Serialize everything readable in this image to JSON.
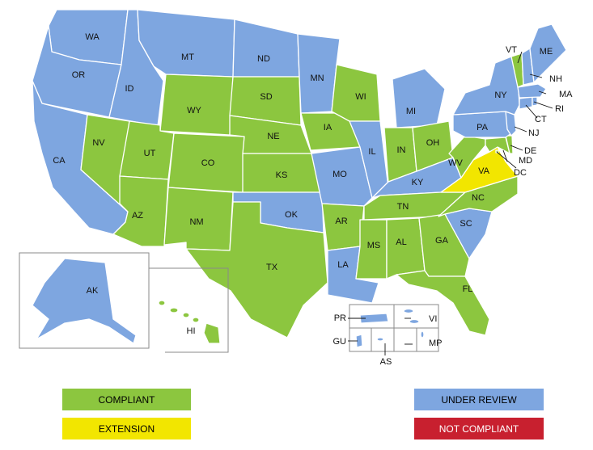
{
  "colors": {
    "compliant": "#8cc63f",
    "under_review": "#7ea6e0",
    "extension": "#f2e600",
    "not_compliant": "#c8202f"
  },
  "legend": {
    "compliant": "COMPLIANT",
    "extension": "EXTENSION",
    "under_review": "UNDER REVIEW",
    "not_compliant": "NOT COMPLIANT"
  },
  "states": [
    {
      "code": "WA",
      "status": "under_review"
    },
    {
      "code": "OR",
      "status": "under_review"
    },
    {
      "code": "CA",
      "status": "under_review"
    },
    {
      "code": "ID",
      "status": "under_review"
    },
    {
      "code": "NV",
      "status": "compliant"
    },
    {
      "code": "MT",
      "status": "under_review"
    },
    {
      "code": "WY",
      "status": "compliant"
    },
    {
      "code": "UT",
      "status": "compliant"
    },
    {
      "code": "AZ",
      "status": "compliant"
    },
    {
      "code": "CO",
      "status": "compliant"
    },
    {
      "code": "NM",
      "status": "compliant"
    },
    {
      "code": "ND",
      "status": "under_review"
    },
    {
      "code": "SD",
      "status": "compliant"
    },
    {
      "code": "NE",
      "status": "compliant"
    },
    {
      "code": "KS",
      "status": "compliant"
    },
    {
      "code": "OK",
      "status": "under_review"
    },
    {
      "code": "TX",
      "status": "compliant"
    },
    {
      "code": "MN",
      "status": "under_review"
    },
    {
      "code": "IA",
      "status": "compliant"
    },
    {
      "code": "MO",
      "status": "under_review"
    },
    {
      "code": "AR",
      "status": "compliant"
    },
    {
      "code": "LA",
      "status": "under_review"
    },
    {
      "code": "WI",
      "status": "compliant"
    },
    {
      "code": "IL",
      "status": "under_review"
    },
    {
      "code": "MI",
      "status": "under_review"
    },
    {
      "code": "IN",
      "status": "compliant"
    },
    {
      "code": "OH",
      "status": "compliant"
    },
    {
      "code": "KY",
      "status": "under_review"
    },
    {
      "code": "TN",
      "status": "compliant"
    },
    {
      "code": "MS",
      "status": "compliant"
    },
    {
      "code": "AL",
      "status": "compliant"
    },
    {
      "code": "GA",
      "status": "compliant"
    },
    {
      "code": "FL",
      "status": "compliant"
    },
    {
      "code": "SC",
      "status": "under_review"
    },
    {
      "code": "NC",
      "status": "compliant"
    },
    {
      "code": "VA",
      "status": "extension"
    },
    {
      "code": "WV",
      "status": "compliant"
    },
    {
      "code": "MD",
      "status": "compliant"
    },
    {
      "code": "DE",
      "status": "compliant"
    },
    {
      "code": "DC",
      "status": "compliant"
    },
    {
      "code": "PA",
      "status": "under_review"
    },
    {
      "code": "NJ",
      "status": "under_review"
    },
    {
      "code": "NY",
      "status": "under_review"
    },
    {
      "code": "CT",
      "status": "under_review"
    },
    {
      "code": "RI",
      "status": "under_review"
    },
    {
      "code": "MA",
      "status": "under_review"
    },
    {
      "code": "VT",
      "status": "compliant"
    },
    {
      "code": "NH",
      "status": "under_review"
    },
    {
      "code": "ME",
      "status": "under_review"
    },
    {
      "code": "AK",
      "status": "under_review"
    },
    {
      "code": "HI",
      "status": "compliant"
    },
    {
      "code": "PR",
      "status": "under_review"
    },
    {
      "code": "VI",
      "status": "under_review"
    },
    {
      "code": "GU",
      "status": "under_review"
    },
    {
      "code": "MP",
      "status": "under_review"
    },
    {
      "code": "AS",
      "status": "under_review"
    }
  ]
}
